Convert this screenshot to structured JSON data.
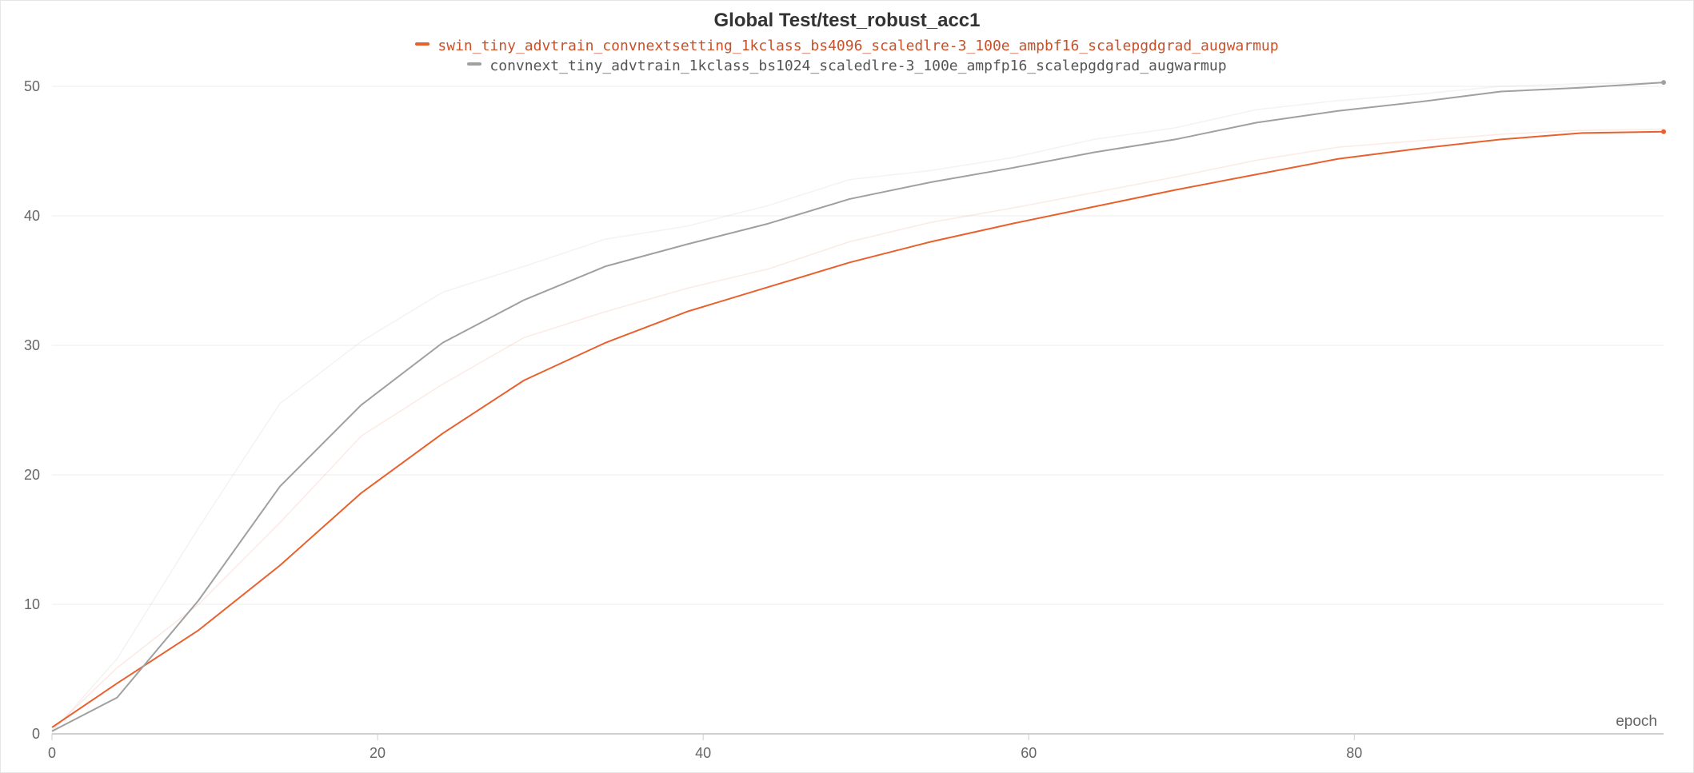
{
  "chart_data": {
    "type": "line",
    "title": "Global Test/test_robust_acc1",
    "xlabel": "epoch",
    "ylabel": "",
    "xlim": [
      0,
      99
    ],
    "ylim": [
      0,
      52
    ],
    "x_ticks": [
      0,
      20,
      40,
      60,
      80
    ],
    "y_ticks": [
      0,
      10,
      20,
      30,
      40,
      50
    ],
    "grid": true,
    "legend_position": "top-center",
    "series": [
      {
        "name": "swin_tiny_advtrain_convnextsetting_1kclass_bs4096_scaledlre-3_100e_ampbf16_scalepgdgrad_augwarmup",
        "color": "#e8602c",
        "x": [
          0,
          4,
          9,
          14,
          19,
          24,
          29,
          34,
          39,
          44,
          49,
          54,
          59,
          64,
          69,
          74,
          79,
          84,
          89,
          94,
          99
        ],
        "values": [
          0.5,
          3.9,
          8.0,
          13.0,
          18.6,
          23.2,
          27.3,
          30.2,
          32.6,
          34.5,
          36.4,
          38.0,
          39.4,
          40.7,
          42.0,
          43.2,
          44.4,
          45.2,
          45.9,
          46.4,
          46.5
        ],
        "raw_values": [
          0.3,
          5.1,
          10.0,
          16.3,
          23.0,
          27.0,
          30.6,
          32.6,
          34.4,
          35.9,
          38.0,
          39.5,
          40.6,
          41.8,
          43.0,
          44.3,
          45.3,
          45.8,
          46.3,
          46.6,
          46.7
        ]
      },
      {
        "name": "convnext_tiny_advtrain_1kclass_bs1024_scaledlre-3_100e_ampfp16_scalepgdgrad_augwarmup",
        "color": "#a0a0a0",
        "x": [
          0,
          4,
          9,
          14,
          19,
          24,
          29,
          34,
          39,
          44,
          49,
          54,
          59,
          64,
          69,
          74,
          79,
          84,
          89,
          94,
          99
        ],
        "values": [
          0.2,
          2.8,
          10.3,
          19.1,
          25.4,
          30.2,
          33.5,
          36.1,
          37.8,
          39.4,
          41.3,
          42.6,
          43.7,
          44.9,
          45.9,
          47.2,
          48.1,
          48.8,
          49.6,
          49.9,
          50.3
        ],
        "raw_values": [
          0.1,
          5.8,
          15.9,
          25.5,
          30.3,
          34.1,
          36.1,
          38.2,
          39.2,
          40.8,
          42.8,
          43.5,
          44.5,
          45.9,
          46.8,
          48.2,
          48.9,
          49.4,
          50.0,
          50.2,
          50.3
        ]
      }
    ]
  }
}
